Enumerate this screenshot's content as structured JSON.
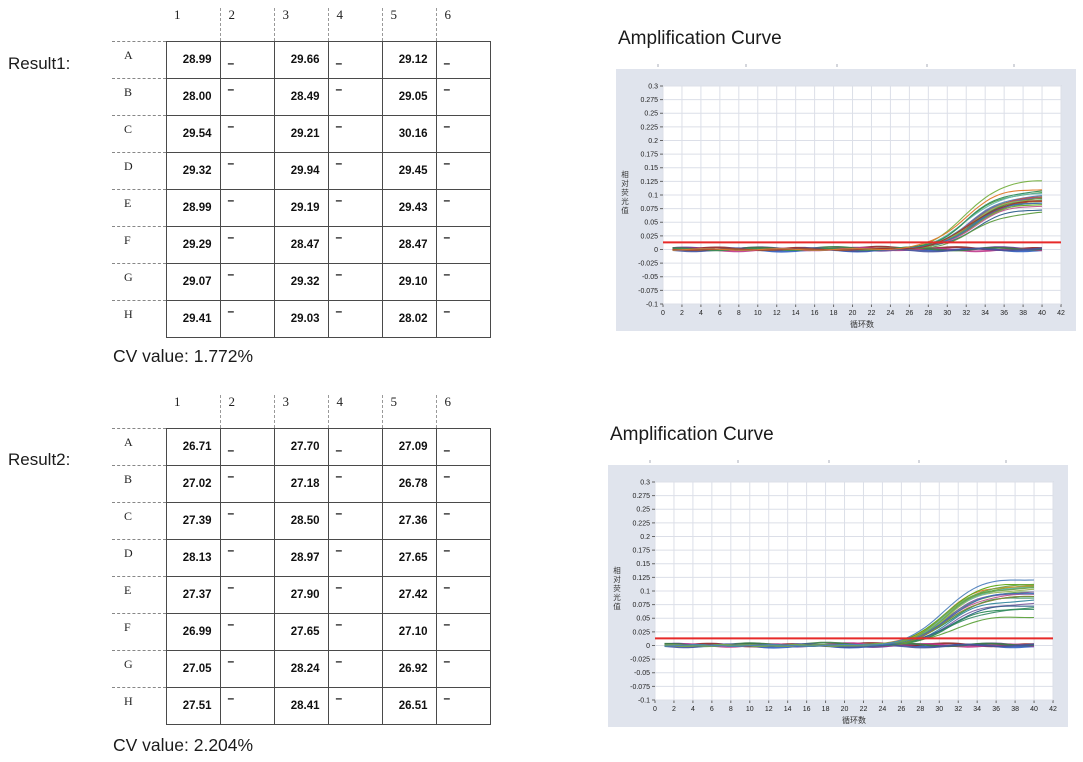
{
  "results": [
    {
      "label": "Result1:",
      "cv_label": "CV value: 1.772%",
      "table": {
        "col_headers": [
          "1",
          "2",
          "3",
          "4",
          "5",
          "6"
        ],
        "row_headers": [
          "A",
          "B",
          "C",
          "D",
          "E",
          "F",
          "G",
          "H"
        ],
        "empty_marker": "–",
        "rows": [
          [
            "28.99",
            "–",
            "29.66",
            "–",
            "29.12",
            "–"
          ],
          [
            "28.00",
            "–",
            "28.49",
            "–",
            "29.05",
            "–"
          ],
          [
            "29.54",
            "–",
            "29.21",
            "–",
            "30.16",
            "–"
          ],
          [
            "29.32",
            "–",
            "29.94",
            "–",
            "29.45",
            "–"
          ],
          [
            "28.99",
            "–",
            "29.19",
            "–",
            "29.43",
            "–"
          ],
          [
            "29.29",
            "–",
            "28.47",
            "–",
            "28.47",
            "–"
          ],
          [
            "29.07",
            "–",
            "29.32",
            "–",
            "29.10",
            "–"
          ],
          [
            "29.41",
            "–",
            "29.03",
            "–",
            "28.02",
            "–"
          ]
        ]
      }
    },
    {
      "label": "Result2:",
      "cv_label": "CV value: 2.204%",
      "table": {
        "col_headers": [
          "1",
          "2",
          "3",
          "4",
          "5",
          "6"
        ],
        "row_headers": [
          "A",
          "B",
          "C",
          "D",
          "E",
          "F",
          "G",
          "H"
        ],
        "empty_marker": "–",
        "rows": [
          [
            "26.71",
            "–",
            "27.70",
            "–",
            "27.09",
            "–"
          ],
          [
            "27.02",
            "–",
            "27.18",
            "–",
            "26.78",
            "–"
          ],
          [
            "27.39",
            "–",
            "28.50",
            "–",
            "27.36",
            "–"
          ],
          [
            "28.13",
            "–",
            "28.97",
            "–",
            "27.65",
            "–"
          ],
          [
            "27.37",
            "–",
            "27.90",
            "–",
            "27.42",
            "–"
          ],
          [
            "26.99",
            "–",
            "27.65",
            "–",
            "27.10",
            "–"
          ],
          [
            "27.05",
            "–",
            "28.24",
            "–",
            "26.92",
            "–"
          ],
          [
            "27.51",
            "–",
            "28.41",
            "–",
            "26.51",
            "–"
          ]
        ]
      }
    }
  ],
  "chart_data": [
    {
      "type": "line",
      "title": "Amplification Curve",
      "xlabel": "循环数",
      "ylabel": "相对荧光值",
      "xlim": [
        0,
        42
      ],
      "ylim": [
        -0.1,
        0.3
      ],
      "x_tick_step": 2,
      "y_tick_step": 0.025,
      "grid": true,
      "panel_bg": "#e0e4ed",
      "plot_bg": "#ffffff",
      "grid_color": "#dcdfe8",
      "threshold": {
        "value": 0.013,
        "color": "#e62a2a"
      },
      "curve_x_end": 40,
      "sigmoid_k": 0.55,
      "curves": [
        {
          "well": "A1",
          "ct": 28.99,
          "plateau": 0.1,
          "color": "#4f81bd"
        },
        {
          "well": "B1",
          "ct": 28.0,
          "plateau": 0.127,
          "color": "#76b041"
        },
        {
          "well": "C1",
          "ct": 29.54,
          "plateau": 0.085,
          "color": "#60a917"
        },
        {
          "well": "D1",
          "ct": 29.32,
          "plateau": 0.091,
          "color": "#8064a2"
        },
        {
          "well": "E1",
          "ct": 28.99,
          "plateau": 0.096,
          "color": "#4bacc6"
        },
        {
          "well": "F1",
          "ct": 29.29,
          "plateau": 0.092,
          "color": "#3e8f6a"
        },
        {
          "well": "G1",
          "ct": 29.07,
          "plateau": 0.098,
          "color": "#6aa84f"
        },
        {
          "well": "H1",
          "ct": 29.41,
          "plateau": 0.089,
          "color": "#b05c2a"
        },
        {
          "well": "A3",
          "ct": 29.66,
          "plateau": 0.082,
          "color": "#c2568c"
        },
        {
          "well": "B3",
          "ct": 28.49,
          "plateau": 0.105,
          "color": "#4c9e45"
        },
        {
          "well": "C3",
          "ct": 29.21,
          "plateau": 0.094,
          "color": "#2c8e57"
        },
        {
          "well": "D3",
          "ct": 29.94,
          "plateau": 0.075,
          "color": "#2e5f8a"
        },
        {
          "well": "E3",
          "ct": 29.19,
          "plateau": 0.095,
          "color": "#77933c"
        },
        {
          "well": "F3",
          "ct": 28.47,
          "plateau": 0.103,
          "color": "#69b7b0"
        },
        {
          "well": "G3",
          "ct": 29.32,
          "plateau": 0.088,
          "color": "#31859c"
        },
        {
          "well": "H3",
          "ct": 29.03,
          "plateau": 0.097,
          "color": "#7b5ea7"
        },
        {
          "well": "A5",
          "ct": 29.12,
          "plateau": 0.097,
          "color": "#c0504d"
        },
        {
          "well": "B5",
          "ct": 29.05,
          "plateau": 0.093,
          "color": "#9bbb59"
        },
        {
          "well": "C5",
          "ct": 30.16,
          "plateau": 0.069,
          "color": "#5e9c3f"
        },
        {
          "well": "D5",
          "ct": 29.45,
          "plateau": 0.086,
          "color": "#71a850"
        },
        {
          "well": "E5",
          "ct": 29.43,
          "plateau": 0.088,
          "color": "#3d6bb5"
        },
        {
          "well": "F5",
          "ct": 28.47,
          "plateau": 0.108,
          "color": "#2e8b57"
        },
        {
          "well": "G5",
          "ct": 29.1,
          "plateau": 0.09,
          "color": "#a0332e"
        },
        {
          "well": "H5",
          "ct": 28.02,
          "plateau": 0.112,
          "color": "#e0782a"
        }
      ],
      "baselines": [
        {
          "color": "#5b2d8e",
          "level": 0.001
        },
        {
          "color": "#2f5fc4",
          "level": -0.001
        },
        {
          "color": "#8e2323",
          "level": 0.002
        },
        {
          "color": "#c0398c",
          "level": 0.0
        },
        {
          "color": "#3a7d44",
          "level": 0.0015
        },
        {
          "color": "#4553a0",
          "level": -0.0005
        }
      ]
    },
    {
      "type": "line",
      "title": "Amplification Curve",
      "xlabel": "循环数",
      "ylabel": "相对荧光值",
      "xlim": [
        0,
        42
      ],
      "ylim": [
        -0.1,
        0.3
      ],
      "x_tick_step": 2,
      "y_tick_step": 0.025,
      "grid": true,
      "panel_bg": "#e0e4ed",
      "plot_bg": "#ffffff",
      "grid_color": "#dcdfe8",
      "threshold": {
        "value": 0.013,
        "color": "#e62a2a"
      },
      "curve_x_end": 40,
      "sigmoid_k": 0.55,
      "curves": [
        {
          "well": "A1",
          "ct": 26.71,
          "plateau": 0.11,
          "color": "#e0782a"
        },
        {
          "well": "B1",
          "ct": 27.02,
          "plateau": 0.108,
          "color": "#76b041"
        },
        {
          "well": "C1",
          "ct": 27.39,
          "plateau": 0.097,
          "color": "#4bacc6"
        },
        {
          "well": "D1",
          "ct": 28.13,
          "plateau": 0.077,
          "color": "#8064a2"
        },
        {
          "well": "E1",
          "ct": 27.37,
          "plateau": 0.098,
          "color": "#6aa84f"
        },
        {
          "well": "F1",
          "ct": 26.99,
          "plateau": 0.109,
          "color": "#d9972f"
        },
        {
          "well": "G1",
          "ct": 27.05,
          "plateau": 0.107,
          "color": "#4c9e45"
        },
        {
          "well": "H1",
          "ct": 27.51,
          "plateau": 0.094,
          "color": "#c2568c"
        },
        {
          "well": "A3",
          "ct": 27.7,
          "plateau": 0.089,
          "color": "#2c8e57"
        },
        {
          "well": "B3",
          "ct": 27.18,
          "plateau": 0.103,
          "color": "#9bbb59"
        },
        {
          "well": "C3",
          "ct": 28.5,
          "plateau": 0.066,
          "color": "#3e8f6a"
        },
        {
          "well": "D3",
          "ct": 28.97,
          "plateau": 0.053,
          "color": "#5fa33c"
        },
        {
          "well": "E3",
          "ct": 27.9,
          "plateau": 0.083,
          "color": "#31859c"
        },
        {
          "well": "F3",
          "ct": 27.65,
          "plateau": 0.09,
          "color": "#c0504d"
        },
        {
          "well": "G3",
          "ct": 28.24,
          "plateau": 0.074,
          "color": "#2e5f8a"
        },
        {
          "well": "H3",
          "ct": 28.41,
          "plateau": 0.069,
          "color": "#2e8b57"
        },
        {
          "well": "A5",
          "ct": 27.09,
          "plateau": 0.106,
          "color": "#69b7b0"
        },
        {
          "well": "B5",
          "ct": 26.78,
          "plateau": 0.114,
          "color": "#60a917"
        },
        {
          "well": "C5",
          "ct": 27.36,
          "plateau": 0.098,
          "color": "#7b5ea7"
        },
        {
          "well": "D5",
          "ct": 27.65,
          "plateau": 0.09,
          "color": "#77933c"
        },
        {
          "well": "E5",
          "ct": 27.42,
          "plateau": 0.097,
          "color": "#3d6bb5"
        },
        {
          "well": "F5",
          "ct": 27.1,
          "plateau": 0.106,
          "color": "#71a850"
        },
        {
          "well": "G5",
          "ct": 26.92,
          "plateau": 0.111,
          "color": "#6aa84f"
        },
        {
          "well": "H5",
          "ct": 26.51,
          "plateau": 0.122,
          "color": "#4f81bd"
        }
      ],
      "baselines": [
        {
          "color": "#5b2d8e",
          "level": 0.0005
        },
        {
          "color": "#2f5fc4",
          "level": -0.001
        },
        {
          "color": "#8e2323",
          "level": 0.0015
        },
        {
          "color": "#c0398c",
          "level": 0.001
        },
        {
          "color": "#3a7d44",
          "level": 0.002
        },
        {
          "color": "#4553a0",
          "level": -0.0005
        }
      ]
    }
  ]
}
